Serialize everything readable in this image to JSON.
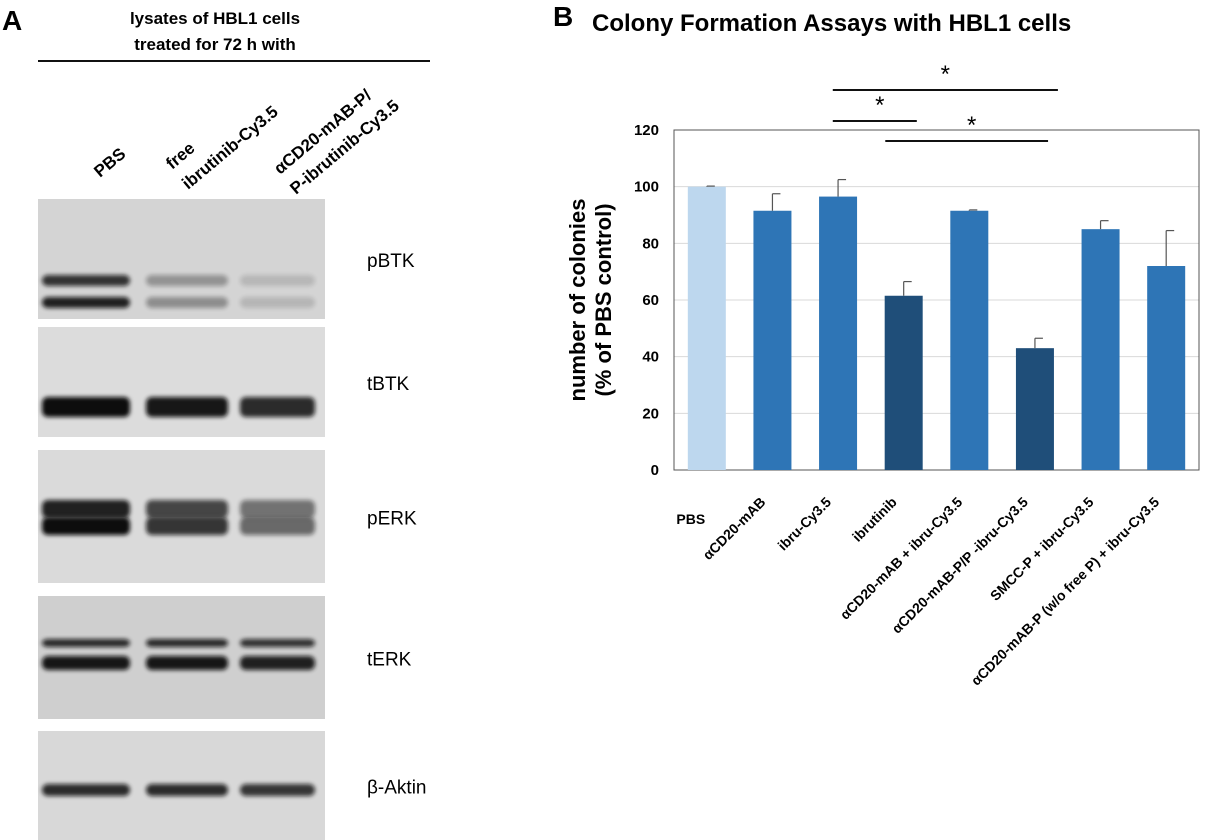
{
  "panel_a": {
    "letter": "A",
    "header_line1": "lysates of HBL1 cells",
    "header_line2": "treated for 72 h with",
    "lanes": [
      {
        "line1": "",
        "line2": "PBS"
      },
      {
        "line1": "free",
        "line2": "ibrutinib-Cy3.5"
      },
      {
        "line1": "αCD20-mAB-P/",
        "line2": "P-ibrutinib-Cy3.5"
      }
    ],
    "blots": [
      {
        "label": "pBTK",
        "lane_intensity": [
          0.9,
          0.35,
          0.15
        ],
        "background": "#d4d4d4",
        "double_band": true
      },
      {
        "label": "tBTK",
        "lane_intensity": [
          1.0,
          0.95,
          0.85
        ],
        "background": "#dcdcdc",
        "double_band": false
      },
      {
        "label": "pERK",
        "lane_intensity": [
          1.0,
          0.8,
          0.55
        ],
        "background": "#dadada",
        "double_band": true
      },
      {
        "label": "tERK",
        "lane_intensity": [
          0.95,
          0.95,
          0.9
        ],
        "background": "#cfcfcf",
        "double_band": true
      },
      {
        "label": "β-Aktin",
        "lane_intensity": [
          0.85,
          0.85,
          0.8
        ],
        "background": "#d8d8d8",
        "double_band": false
      }
    ]
  },
  "panel_b": {
    "letter": "B",
    "title": "Colony Formation Assays with HBL1 cells",
    "significance": [
      "*",
      "*",
      "*"
    ]
  },
  "chart_data": {
    "type": "bar",
    "title": "Colony Formation Assays with HBL1 cells",
    "xlabel": "",
    "ylabel": "number of colonies (% of PBS control)",
    "ylabel_line1": "number of colonies",
    "ylabel_line2": "(% of PBS control)",
    "ylim": [
      0,
      120
    ],
    "yticks": [
      0,
      20,
      40,
      60,
      80,
      100,
      120
    ],
    "grid": true,
    "categories": [
      "PBS",
      "αCD20-mAB",
      "ibru-Cy3.5",
      "ibrutinib",
      "αCD20-mAB + ibru-Cy3.5",
      "αCD20-mAB-P/P -ibru-Cy3.5",
      "SMCC-P + ibru-Cy3.5",
      "αCD20-mAB-P (w/o free P) + ibru-Cy3.5"
    ],
    "values": [
      100,
      91.5,
      96.5,
      61.5,
      91.5,
      43,
      85,
      72
    ],
    "errors": [
      0.2,
      6,
      6,
      5,
      0.3,
      3.5,
      3,
      12.5
    ],
    "colors": [
      "#bdd7ee",
      "#2e75b6",
      "#2e75b6",
      "#1f4e79",
      "#2e75b6",
      "#1f4e79",
      "#2e75b6",
      "#2e75b6"
    ],
    "significance_brackets": [
      {
        "from": "ibru-Cy3.5",
        "to": "αCD20-mAB-P/P -ibru-Cy3.5",
        "label": "*"
      },
      {
        "from": "ibru-Cy3.5",
        "to": "ibrutinib",
        "label": "*"
      },
      {
        "from": "ibrutinib",
        "to": "αCD20-mAB-P/P -ibru-Cy3.5",
        "label": "*"
      }
    ]
  }
}
